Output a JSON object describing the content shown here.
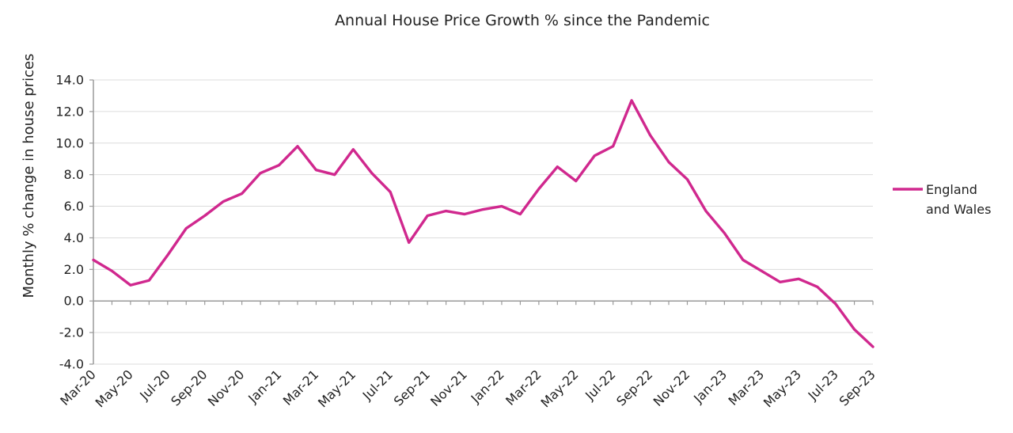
{
  "chart_data": {
    "type": "line",
    "title": "Annual House Price Growth % since the Pandemic",
    "xlabel": "",
    "ylabel": "Monthly % change in house prices",
    "ylim": [
      -4.0,
      14.0
    ],
    "ytick_values": [
      -4.0,
      -2.0,
      0.0,
      2.0,
      4.0,
      6.0,
      8.0,
      10.0,
      12.0,
      14.0
    ],
    "ytick_labels": [
      "-4.0",
      "-2.0",
      "0.0",
      "2.0",
      "4.0",
      "6.0",
      "8.0",
      "10.0",
      "12.0",
      "14.0"
    ],
    "x": [
      "Mar-20",
      "Apr-20",
      "May-20",
      "Jun-20",
      "Jul-20",
      "Aug-20",
      "Sep-20",
      "Oct-20",
      "Nov-20",
      "Dec-20",
      "Jan-21",
      "Feb-21",
      "Mar-21",
      "Apr-21",
      "May-21",
      "Jun-21",
      "Jul-21",
      "Aug-21",
      "Sep-21",
      "Oct-21",
      "Nov-21",
      "Dec-21",
      "Jan-22",
      "Feb-22",
      "Mar-22",
      "Apr-22",
      "May-22",
      "Jun-22",
      "Jul-22",
      "Aug-22",
      "Sep-22",
      "Oct-22",
      "Nov-22",
      "Dec-22",
      "Jan-23",
      "Feb-23",
      "Mar-23",
      "Apr-23",
      "May-23",
      "Jun-23",
      "Jul-23",
      "Aug-23",
      "Sep-23"
    ],
    "xtick_labels": [
      "Mar-20",
      "May-20",
      "Jul-20",
      "Sep-20",
      "Nov-20",
      "Jan-21",
      "Mar-21",
      "May-21",
      "Jul-21",
      "Sep-21",
      "Nov-21",
      "Jan-22",
      "Mar-22",
      "May-22",
      "Jul-22",
      "Sep-22",
      "Nov-22",
      "Jan-23",
      "Mar-23",
      "May-23",
      "Jul-23",
      "Sep-23"
    ],
    "grid": true,
    "legend_position": "right",
    "series": [
      {
        "name": "England and Wales",
        "legend_lines": [
          "England",
          "and Wales"
        ],
        "color": "#d0288e",
        "values": [
          2.6,
          1.9,
          1.0,
          1.3,
          2.9,
          4.6,
          5.4,
          6.3,
          6.8,
          8.1,
          8.6,
          9.8,
          8.3,
          8.0,
          9.6,
          8.1,
          6.9,
          3.7,
          5.4,
          5.7,
          5.5,
          5.8,
          6.0,
          5.5,
          7.1,
          8.5,
          7.6,
          9.2,
          9.8,
          12.7,
          10.5,
          8.8,
          7.7,
          5.7,
          4.3,
          2.6,
          1.9,
          1.2,
          1.4,
          0.9,
          -0.2,
          -1.8,
          -2.9
        ]
      }
    ]
  },
  "colors": {
    "axis": "#9a9a9a",
    "grid": "#dcdcdc",
    "text": "#222222"
  }
}
